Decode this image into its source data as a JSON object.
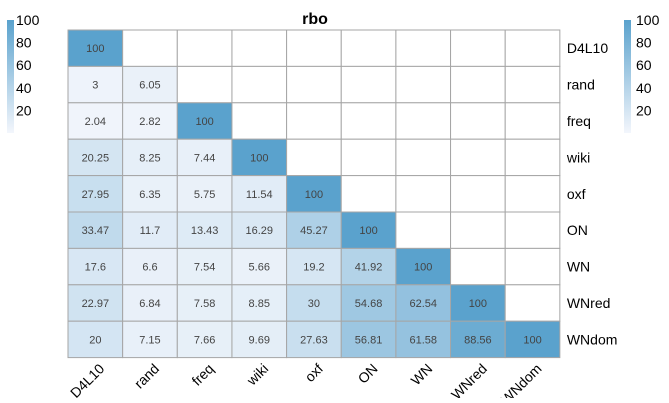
{
  "chart_data": {
    "type": "heatmap",
    "title": "rbo",
    "row_labels": [
      "D4L10",
      "rand",
      "freq",
      "wiki",
      "oxf",
      "ON",
      "WN",
      "WNred",
      "WNdom"
    ],
    "col_labels": [
      "D4L10",
      "rand",
      "freq",
      "wiki",
      "oxf",
      "ON",
      "WN",
      "WNred",
      "WNdom"
    ],
    "matrix_shape": "lower-triangular",
    "cells": [
      [
        100
      ],
      [
        3,
        6.05
      ],
      [
        2.04,
        2.82,
        100
      ],
      [
        20.25,
        8.25,
        7.44,
        100
      ],
      [
        27.95,
        6.35,
        5.75,
        11.54,
        100
      ],
      [
        33.47,
        11.7,
        13.43,
        16.29,
        45.27,
        100
      ],
      [
        17.6,
        6.6,
        7.54,
        5.66,
        19.2,
        41.92,
        100
      ],
      [
        22.97,
        6.84,
        7.58,
        8.85,
        30,
        54.68,
        62.54,
        100
      ],
      [
        20,
        7.15,
        7.66,
        9.69,
        27.63,
        56.81,
        61.58,
        88.56,
        100
      ]
    ],
    "cell_labels": [
      [
        "100"
      ],
      [
        "3",
        "6.05"
      ],
      [
        "2.04",
        "2.82",
        "100"
      ],
      [
        "20.25",
        "8.25",
        "7.44",
        "100"
      ],
      [
        "27.95",
        "6.35",
        "5.75",
        "11.54",
        "100"
      ],
      [
        "33.47",
        "11.7",
        "13.43",
        "16.29",
        "45.27",
        "100"
      ],
      [
        "17.6",
        "6.6",
        "7.54",
        "5.66",
        "19.2",
        "41.92",
        "100"
      ],
      [
        "22.97",
        "6.84",
        "7.58",
        "8.85",
        "30",
        "54.68",
        "62.54",
        "100"
      ],
      [
        "20",
        "7.15",
        "7.66",
        "9.69",
        "27.63",
        "56.81",
        "61.58",
        "88.56",
        "100"
      ]
    ],
    "color_range": [
      0,
      100
    ],
    "colorbar": {
      "ticks": [
        "100",
        "80",
        "60",
        "40",
        "20"
      ],
      "tick_values": [
        100,
        80,
        60,
        40,
        20
      ],
      "placement": "left-and-right"
    },
    "colors": {
      "low": "#f3f6fc",
      "high": "#5aa2cd",
      "cell_border": "#a6a6a6",
      "empty_cell": "#ffffff"
    },
    "grid": true,
    "legend": "none"
  }
}
